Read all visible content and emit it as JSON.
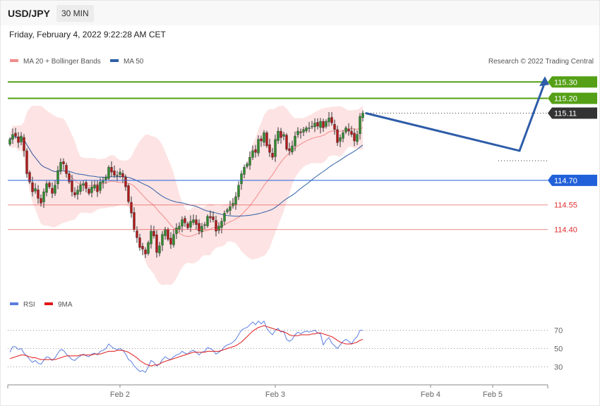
{
  "header": {
    "symbol": "USD/JPY",
    "timeframe": "30 MIN"
  },
  "datetime": "Friday, February 4, 2022 9:22:28 AM CET",
  "legend": {
    "ma_bb": {
      "label": "MA 20 + Bollinger Bands",
      "color": "#f28b8b"
    },
    "ma50": {
      "label": "MA 50",
      "color": "#2f5fa7"
    },
    "credit": "Research © 2022 Trading Central"
  },
  "rsi_legend": {
    "rsi": {
      "label": "RSI",
      "color": "#5b7fe0"
    },
    "ma9": {
      "label": "9MA",
      "color": "#e01818"
    }
  },
  "chart_data": [
    {
      "type": "candlestick",
      "title": "USD/JPY 30 MIN",
      "ylim": [
        114.05,
        115.4
      ],
      "levels": [
        {
          "value": 115.3,
          "label": "115.30",
          "kind": "resistance",
          "color": "#55a016"
        },
        {
          "value": 115.2,
          "label": "115.20",
          "kind": "resistance",
          "color": "#55a016"
        },
        {
          "value": 115.11,
          "label": "115.11",
          "kind": "last price",
          "color": "#333333"
        },
        {
          "value": 114.7,
          "label": "114.70",
          "kind": "pivot",
          "color": "#2160d9"
        },
        {
          "value": 114.55,
          "label": "114.55",
          "kind": "support",
          "color": "#e03030"
        },
        {
          "value": 114.4,
          "label": "114.40",
          "kind": "support",
          "color": "#e03030"
        }
      ],
      "x_ticks": [
        "Feb 2",
        "Feb 3",
        "Feb 4",
        "Feb 5"
      ],
      "x_tick_index": [
        39,
        94,
        149,
        171
      ],
      "scenario": [
        115.11,
        114.88,
        115.3
      ],
      "closes": [
        114.95,
        114.98,
        114.97,
        114.93,
        114.97,
        114.88,
        114.74,
        114.69,
        114.63,
        114.65,
        114.59,
        114.56,
        114.63,
        114.68,
        114.66,
        114.62,
        114.67,
        114.76,
        114.81,
        114.8,
        114.74,
        114.69,
        114.63,
        114.61,
        114.64,
        114.67,
        114.68,
        114.65,
        114.62,
        114.66,
        114.67,
        114.63,
        114.69,
        114.7,
        114.72,
        114.78,
        114.75,
        114.73,
        114.73,
        114.75,
        114.72,
        114.66,
        114.57,
        114.5,
        114.4,
        114.35,
        114.29,
        114.28,
        114.25,
        114.32,
        114.39,
        114.36,
        114.26,
        114.3,
        114.37,
        114.4,
        114.34,
        114.31,
        114.37,
        114.41,
        114.42,
        114.46,
        114.44,
        114.41,
        114.45,
        114.46,
        114.43,
        114.39,
        114.42,
        114.43,
        114.48,
        114.47,
        114.46,
        114.39,
        114.42,
        114.45,
        114.5,
        114.52,
        114.54,
        114.56,
        114.6,
        114.67,
        114.74,
        114.78,
        114.8,
        114.84,
        114.88,
        114.87,
        114.95,
        114.94,
        114.99,
        114.91,
        114.87,
        114.84,
        114.95,
        115.0,
        114.96,
        114.98,
        114.89,
        114.88,
        114.91,
        114.97,
        115.0,
        114.99,
        115.01,
        115.02,
        115.02,
        115.03,
        115.05,
        115.03,
        115.06,
        115.02,
        115.06,
        115.08,
        115.05,
        115.01,
        114.93,
        114.96,
        114.99,
        115.02,
        115.0,
        114.98,
        114.94,
        114.98,
        115.09,
        115.11
      ],
      "rsi": {
        "ylim": [
          15,
          85
        ],
        "levels": [
          70,
          50,
          30
        ],
        "rsi": [
          46,
          52,
          52,
          49,
          50,
          45,
          42,
          38,
          35,
          37,
          34,
          33,
          37,
          41,
          40,
          37,
          40,
          45,
          49,
          48,
          44,
          41,
          38,
          37,
          40,
          42,
          44,
          42,
          41,
          44,
          45,
          43,
          47,
          48,
          50,
          55,
          52,
          50,
          49,
          50,
          48,
          44,
          38,
          36,
          31,
          28,
          25,
          26,
          24,
          30,
          37,
          35,
          31,
          33,
          38,
          41,
          39,
          38,
          41,
          43,
          44,
          47,
          45,
          44,
          47,
          48,
          46,
          43,
          46,
          47,
          51,
          50,
          48,
          44,
          46,
          48,
          52,
          54,
          55,
          57,
          60,
          65,
          70,
          72,
          73,
          76,
          79,
          76,
          80,
          77,
          80,
          72,
          68,
          65,
          70,
          72,
          68,
          69,
          60,
          58,
          60,
          65,
          68,
          66,
          68,
          69,
          68,
          69,
          70,
          67,
          66,
          54,
          59,
          62,
          56,
          53,
          50,
          54,
          58,
          60,
          58,
          55,
          60,
          63,
          70,
          70
        ],
        "ma9": [
          39,
          40,
          41,
          42,
          43,
          43,
          42,
          41,
          40,
          40,
          39,
          38,
          38,
          38,
          38,
          38,
          38,
          39,
          40,
          41,
          42,
          42,
          42,
          42,
          42,
          43,
          43,
          43,
          43,
          43,
          44,
          44,
          44,
          45,
          46,
          47,
          47,
          47,
          48,
          48,
          48,
          47,
          46,
          44,
          42,
          40,
          37,
          35,
          33,
          32,
          31,
          32,
          32,
          33,
          35,
          36,
          37,
          38,
          39,
          40,
          41,
          42,
          43,
          44,
          45,
          46,
          46,
          46,
          46,
          46,
          47,
          47,
          47,
          47,
          47,
          48,
          49,
          50,
          51,
          52,
          53,
          55,
          57,
          60,
          63,
          66,
          69,
          71,
          73,
          74,
          75,
          74,
          73,
          72,
          71,
          70,
          69,
          68,
          67,
          65,
          64,
          64,
          64,
          65,
          65,
          65,
          65,
          66,
          66,
          67,
          67,
          66,
          65,
          64,
          63,
          61,
          59,
          57,
          56,
          55,
          55,
          55,
          56,
          57,
          59,
          60
        ]
      }
    }
  ]
}
